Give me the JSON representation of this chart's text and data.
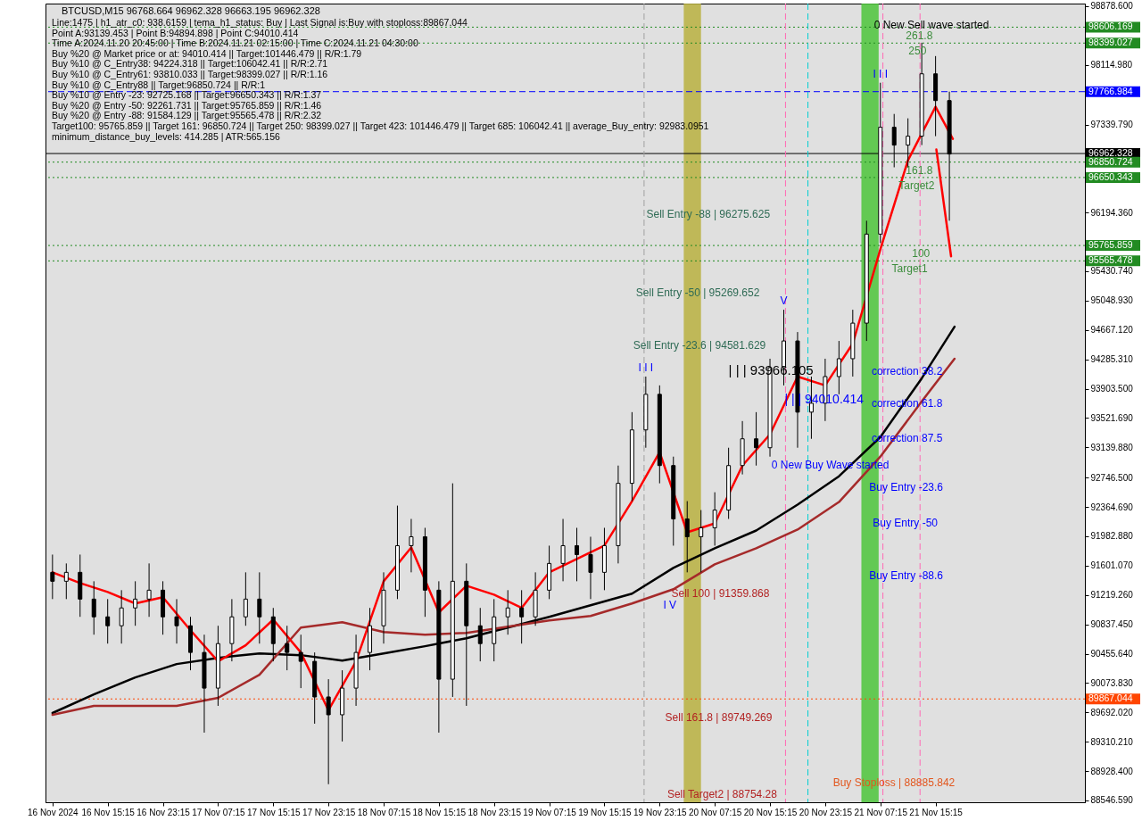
{
  "chart_data": {
    "type": "candlestick",
    "title": "BTCUSD,M15  96768.664 96962.328 96663.195 96962.328",
    "x": [
      "2024-11-16T07:15",
      "2024-11-16T09:15",
      "2024-11-16T11:15",
      "2024-11-16T13:15",
      "2024-11-16T15:15",
      "2024-11-16T17:15",
      "2024-11-16T19:15",
      "2024-11-16T21:15",
      "2024-11-16T23:15",
      "2024-11-17T01:15",
      "2024-11-17T03:15",
      "2024-11-17T05:15",
      "2024-11-17T07:15",
      "2024-11-17T09:15",
      "2024-11-17T11:15",
      "2024-11-17T13:15",
      "2024-11-17T15:15",
      "2024-11-17T17:15",
      "2024-11-17T19:15",
      "2024-11-17T21:15",
      "2024-11-17T23:15",
      "2024-11-18T01:15",
      "2024-11-18T03:15",
      "2024-11-18T05:15",
      "2024-11-18T07:15",
      "2024-11-18T09:15",
      "2024-11-18T11:15",
      "2024-11-18T13:15",
      "2024-11-18T15:15",
      "2024-11-18T17:15",
      "2024-11-18T19:15",
      "2024-11-18T21:15",
      "2024-11-18T23:15",
      "2024-11-19T01:15",
      "2024-11-19T03:15",
      "2024-11-19T05:15",
      "2024-11-19T07:15",
      "2024-11-19T09:15",
      "2024-11-19T11:15",
      "2024-11-19T13:15",
      "2024-11-19T15:15",
      "2024-11-19T17:15",
      "2024-11-19T19:15",
      "2024-11-19T21:15",
      "2024-11-19T23:15",
      "2024-11-20T01:15",
      "2024-11-20T03:15",
      "2024-11-20T05:15",
      "2024-11-20T07:15",
      "2024-11-20T09:15",
      "2024-11-20T11:15",
      "2024-11-20T13:15",
      "2024-11-20T15:15",
      "2024-11-20T17:15",
      "2024-11-20T19:15",
      "2024-11-20T21:15",
      "2024-11-20T23:15",
      "2024-11-21T01:15",
      "2024-11-21T03:15",
      "2024-11-21T05:15",
      "2024-11-21T07:15",
      "2024-11-21T09:15",
      "2024-11-21T11:15",
      "2024-11-21T13:15",
      "2024-11-21T15:15",
      "2024-11-21T17:15"
    ],
    "ohlc": [
      [
        91514,
        91745,
        91166,
        91398
      ],
      [
        91398,
        91630,
        91166,
        91514
      ],
      [
        91514,
        91745,
        90935,
        91166
      ],
      [
        91166,
        91398,
        90703,
        90935
      ],
      [
        90935,
        91166,
        90587,
        90819
      ],
      [
        90819,
        91282,
        90587,
        91051
      ],
      [
        91051,
        91398,
        90819,
        91166
      ],
      [
        91166,
        91630,
        90935,
        91282
      ],
      [
        91282,
        91398,
        90703,
        90935
      ],
      [
        90935,
        91166,
        90587,
        90819
      ],
      [
        90819,
        90935,
        90240,
        90472
      ],
      [
        90472,
        90703,
        89429,
        90008
      ],
      [
        90008,
        90819,
        89777,
        90587
      ],
      [
        90587,
        91166,
        90356,
        90935
      ],
      [
        90935,
        91514,
        90819,
        91166
      ],
      [
        91166,
        91514,
        90587,
        90935
      ],
      [
        90935,
        91051,
        90356,
        90587
      ],
      [
        90587,
        90819,
        90240,
        90472
      ],
      [
        90472,
        90703,
        90008,
        90356
      ],
      [
        90356,
        90472,
        89545,
        89893
      ],
      [
        89893,
        90124,
        88758,
        89661
      ],
      [
        89661,
        90240,
        89314,
        90008
      ],
      [
        90008,
        90703,
        89777,
        90472
      ],
      [
        90472,
        91051,
        90240,
        90819
      ],
      [
        90819,
        91514,
        90587,
        91282
      ],
      [
        91282,
        92382,
        91166,
        91861
      ],
      [
        91861,
        92209,
        91514,
        91977
      ],
      [
        91977,
        92093,
        90935,
        91282
      ],
      [
        91282,
        91398,
        89429,
        90124
      ],
      [
        90124,
        92672,
        89893,
        91398
      ],
      [
        91398,
        91630,
        89777,
        90819
      ],
      [
        90819,
        91051,
        90356,
        90587
      ],
      [
        90587,
        91166,
        90356,
        90935
      ],
      [
        90935,
        91282,
        90703,
        91051
      ],
      [
        91051,
        91282,
        90587,
        90935
      ],
      [
        90935,
        91514,
        90819,
        91282
      ],
      [
        91282,
        91861,
        91166,
        91630
      ],
      [
        91630,
        92209,
        91398,
        91861
      ],
      [
        91861,
        92093,
        91398,
        91745
      ],
      [
        91745,
        91977,
        91166,
        91514
      ],
      [
        91514,
        92093,
        91282,
        91861
      ],
      [
        91861,
        92903,
        91630,
        92672
      ],
      [
        92672,
        93598,
        92440,
        93367
      ],
      [
        93367,
        94061,
        93135,
        93830
      ],
      [
        93830,
        93946,
        92672,
        92903
      ],
      [
        92903,
        93019,
        91861,
        92209
      ],
      [
        92209,
        92440,
        91514,
        91977
      ],
      [
        91977,
        92324,
        91514,
        92093
      ],
      [
        92093,
        92556,
        91861,
        92324
      ],
      [
        92324,
        93135,
        92209,
        92903
      ],
      [
        92903,
        93482,
        92788,
        93251
      ],
      [
        93251,
        93598,
        92903,
        93135
      ],
      [
        93135,
        94293,
        93019,
        94177
      ],
      [
        94177,
        94930,
        93946,
        94524
      ],
      [
        94524,
        94640,
        93135,
        93598
      ],
      [
        93598,
        94061,
        93251,
        93714
      ],
      [
        93714,
        94293,
        93482,
        94061
      ],
      [
        94061,
        94524,
        93830,
        94293
      ],
      [
        94293,
        94930,
        94061,
        94756
      ],
      [
        94756,
        96088,
        94524,
        95914
      ],
      [
        95914,
        97883,
        95798,
        97304
      ],
      [
        97304,
        97477,
        96783,
        97072
      ],
      [
        97072,
        97420,
        96783,
        97188
      ],
      [
        97188,
        98404,
        97072,
        97999
      ],
      [
        97999,
        98230,
        97188,
        97651
      ],
      [
        97651,
        97767,
        96088,
        96956
      ]
    ],
    "series": [
      {
        "type": "line",
        "color": "#000000",
        "x": [
          "2024-11-16T07:15",
          "2024-11-16T13:15",
          "2024-11-16T19:15",
          "2024-11-17T01:15",
          "2024-11-17T07:15",
          "2024-11-17T13:15",
          "2024-11-17T19:15",
          "2024-11-18T01:15",
          "2024-11-18T07:15",
          "2024-11-18T13:15",
          "2024-11-18T19:15",
          "2024-11-19T01:15",
          "2024-11-19T07:15",
          "2024-11-19T13:15",
          "2024-11-19T19:15",
          "2024-11-20T01:15",
          "2024-11-20T07:15",
          "2024-11-20T13:15",
          "2024-11-20T19:15",
          "2024-11-21T01:15",
          "2024-11-21T07:15",
          "2024-11-21T13:15",
          "2024-11-21T18:00"
        ],
        "values": [
          89684,
          89927,
          90147,
          90321,
          90402,
          90460,
          90437,
          90367,
          90460,
          90553,
          90657,
          90796,
          90935,
          91085,
          91236,
          91572,
          91827,
          92058,
          92394,
          92764,
          93274,
          94038,
          94710
        ]
      },
      {
        "type": "line",
        "color": "#a52a2a",
        "x": [
          "2024-11-16T07:15",
          "2024-11-16T13:15",
          "2024-11-16T19:15",
          "2024-11-17T01:15",
          "2024-11-17T07:15",
          "2024-11-17T13:15",
          "2024-11-17T19:15",
          "2024-11-18T01:15",
          "2024-11-18T07:15",
          "2024-11-18T13:15",
          "2024-11-18T19:15",
          "2024-11-19T01:15",
          "2024-11-19T07:15",
          "2024-11-19T13:15",
          "2024-11-19T19:15",
          "2024-11-20T01:15",
          "2024-11-20T07:15",
          "2024-11-20T13:15",
          "2024-11-20T19:15",
          "2024-11-21T01:15",
          "2024-11-21T07:15",
          "2024-11-21T13:15",
          "2024-11-21T18:00"
        ],
        "values": [
          89661,
          89777,
          89777,
          89777,
          89881,
          90182,
          90796,
          90865,
          90738,
          90703,
          90726,
          90807,
          90889,
          90946,
          91109,
          91294,
          91618,
          91827,
          92070,
          92429,
          93019,
          93737,
          94293
        ]
      },
      {
        "type": "line",
        "color": "#ff0000",
        "x": [
          "2024-11-16T07:15",
          "2024-11-16T11:15",
          "2024-11-16T15:15",
          "2024-11-16T19:15",
          "2024-11-16T23:15",
          "2024-11-17T03:15",
          "2024-11-17T07:15",
          "2024-11-17T11:15",
          "2024-11-17T15:15",
          "2024-11-17T19:15",
          "2024-11-17T23:15",
          "2024-11-18T03:15",
          "2024-11-18T07:15",
          "2024-11-18T11:15",
          "2024-11-18T15:15",
          "2024-11-18T19:15",
          "2024-11-18T23:15",
          "2024-11-19T03:15",
          "2024-11-19T07:15",
          "2024-11-19T11:15",
          "2024-11-19T15:15",
          "2024-11-19T19:15",
          "2024-11-19T23:15",
          "2024-11-20T03:15",
          "2024-11-20T07:15",
          "2024-11-20T11:15",
          "2024-11-20T15:15",
          "2024-11-20T19:15",
          "2024-11-20T23:15",
          "2024-11-21T03:15",
          "2024-11-21T07:15",
          "2024-11-21T11:15",
          "2024-11-21T15:15",
          "2024-11-21T17:45"
        ],
        "values": [
          91514,
          91375,
          91259,
          91109,
          91190,
          90761,
          90356,
          90564,
          90900,
          90472,
          89719,
          90356,
          91398,
          91838,
          90993,
          91340,
          91224,
          91051,
          91514,
          91688,
          91861,
          92440,
          93077,
          92035,
          92151,
          92903,
          93309,
          94061,
          93946,
          94490,
          95717,
          96875,
          97570,
          97153
        ]
      },
      {
        "type": "line",
        "color": "#ff0000",
        "x": [
          "2024-11-21T15:22",
          "2024-11-21T17:30"
        ],
        "values": [
          97014,
          95625
        ]
      }
    ],
    "xlim": [
      "2024-11-16T06:53",
      "2024-11-22T12:15"
    ],
    "xticks": [
      {
        "value": "2024-11-16T07:15",
        "label": "16 Nov 2024"
      },
      {
        "value": "2024-11-16T15:15",
        "label": "16 Nov 15:15"
      },
      {
        "value": "2024-11-16T23:15",
        "label": "16 Nov 23:15"
      },
      {
        "value": "2024-11-17T07:15",
        "label": "17 Nov 07:15"
      },
      {
        "value": "2024-11-17T15:15",
        "label": "17 Nov 15:15"
      },
      {
        "value": "2024-11-17T23:15",
        "label": "17 Nov 23:15"
      },
      {
        "value": "2024-11-18T07:15",
        "label": "18 Nov 07:15"
      },
      {
        "value": "2024-11-18T15:15",
        "label": "18 Nov 15:15"
      },
      {
        "value": "2024-11-18T23:15",
        "label": "18 Nov 23:15"
      },
      {
        "value": "2024-11-19T07:15",
        "label": "19 Nov 07:15"
      },
      {
        "value": "2024-11-19T15:15",
        "label": "19 Nov 15:15"
      },
      {
        "value": "2024-11-19T23:15",
        "label": "19 Nov 23:15"
      },
      {
        "value": "2024-11-20T07:15",
        "label": "20 Nov 07:15"
      },
      {
        "value": "2024-11-20T15:15",
        "label": "20 Nov 15:15"
      },
      {
        "value": "2024-11-20T23:15",
        "label": "20 Nov 23:15"
      },
      {
        "value": "2024-11-21T07:15",
        "label": "21 Nov 07:15"
      },
      {
        "value": "2024-11-21T15:15",
        "label": "21 Nov 15:15"
      }
    ],
    "ylim": [
      88523,
      98913
    ],
    "yticks": [
      {
        "value": 98878.6,
        "label": "98878.600"
      },
      {
        "value": 98114.98,
        "label": "98114.980"
      },
      {
        "value": 97339.79,
        "label": "97339.790"
      },
      {
        "value": 96194.36,
        "label": "96194.360"
      },
      {
        "value": 95430.74,
        "label": "95430.740"
      },
      {
        "value": 95048.93,
        "label": "95048.930"
      },
      {
        "value": 94667.12,
        "label": "94667.120"
      },
      {
        "value": 94285.31,
        "label": "94285.310"
      },
      {
        "value": 93903.5,
        "label": "93903.500"
      },
      {
        "value": 93521.69,
        "label": "93521.690"
      },
      {
        "value": 93139.88,
        "label": "93139.880"
      },
      {
        "value": 92746.5,
        "label": "92746.500"
      },
      {
        "value": 92364.69,
        "label": "92364.690"
      },
      {
        "value": 91982.88,
        "label": "91982.880"
      },
      {
        "value": 91601.07,
        "label": "91601.070"
      },
      {
        "value": 91219.26,
        "label": "91219.260"
      },
      {
        "value": 90837.45,
        "label": "90837.450"
      },
      {
        "value": 90455.64,
        "label": "90455.640"
      },
      {
        "value": 90073.83,
        "label": "90073.830"
      },
      {
        "value": 89692.02,
        "label": "89692.020"
      },
      {
        "value": 89310.21,
        "label": "89310.210"
      },
      {
        "value": 88928.4,
        "label": "88928.400"
      },
      {
        "value": 88546.59,
        "label": "88546.590"
      }
    ],
    "bands": [
      {
        "axis": "x",
        "from": "2024-11-20T02:45",
        "to": "2024-11-20T05:15",
        "color": "#b8b040"
      },
      {
        "axis": "x",
        "from": "2024-11-21T04:30",
        "to": "2024-11-21T07:00",
        "color": "#4cc43a"
      }
    ],
    "ref_lines": [
      {
        "axis": "y",
        "value": 98606.169,
        "label": "98606.169",
        "color": "#228b22",
        "line_style": "dotted"
      },
      {
        "axis": "y",
        "value": 98399.027,
        "label": "98399.027",
        "color": "#228b22",
        "line_style": "dotted"
      },
      {
        "axis": "y",
        "value": 97766.984,
        "label": "97766.984",
        "color": "#0000ff",
        "line_style": "dashed"
      },
      {
        "axis": "y",
        "value": 96962.328,
        "label": "96962.328",
        "color": "#000000",
        "line_style": "solid"
      },
      {
        "axis": "y",
        "value": 96850.724,
        "label": "96850.724",
        "color": "#228b22",
        "line_style": "dotted"
      },
      {
        "axis": "y",
        "value": 96650.343,
        "label": "96650.343",
        "color": "#228b22",
        "line_style": "dotted"
      },
      {
        "axis": "y",
        "value": 95765.859,
        "label": "95765.859",
        "color": "#228b22",
        "line_style": "dotted"
      },
      {
        "axis": "y",
        "value": 95565.478,
        "label": "95565.478",
        "color": "#228b22",
        "line_style": "dotted"
      },
      {
        "axis": "y",
        "value": 89867.044,
        "label": "89867.044",
        "color": "#ff4500",
        "line_style": "dotted"
      },
      {
        "axis": "x",
        "value": "2024-11-19T21:00",
        "color": "#a0a0a0",
        "line_style": "dashed"
      },
      {
        "axis": "x",
        "value": "2024-11-20T17:30",
        "color": "#ff69b4",
        "line_style": "dashed"
      },
      {
        "axis": "x",
        "value": "2024-11-20T20:45",
        "color": "#00ced1",
        "line_style": "dashed"
      },
      {
        "axis": "x",
        "value": "2024-11-21T07:37",
        "color": "#ff69b4",
        "line_style": "dashed"
      },
      {
        "axis": "x",
        "value": "2024-11-21T13:00",
        "color": "#ff69b4",
        "line_style": "dashed"
      }
    ],
    "annotations": [
      "Line:1475 | h1_atr_c0: 938.6159 | tema_h1_status: Buy | Last Signal is:Buy with stoploss:89867.044",
      "Point A:93139.453 | Point B:94894.898 | Point C:94010.414",
      "Time A:2024.11.20 20:45:00 | Time B:2024.11.21 02:15:00 | Time C:2024.11.21 04:30:00",
      "Buy %20 @ Market price or at: 94010.414 || Target:101446.479 || R/R:1.79",
      "Buy %10 @ C_Entry38: 94224.318 || Target:106042.41 || R/R:2.71",
      "Buy %10 @ C_Entry61: 93810.033 || Target:98399.027 || R/R:1.16",
      "Buy %10 @ C_Entry88 || Target:96850.724 || R/R:1",
      "Buy %10 @ Entry -23: 92725.168 || Target:96650.343 || R/R:1.37",
      "Buy %20 @ Entry -50: 92261.731 || Target:95765.859 || R/R:1.46",
      "Buy %20 @ Entry -88: 91584.129 || Target:95565.478 || R/R:2.32",
      "Target100: 95765.859 || Target 161: 96850.724 || Target 250: 98399.027 || Target 423: 101446.479 || Target 685: 106042.41 || average_Buy_entry: 92983.0951",
      "minimum_distance_buy_levels: 414.285 | ATR:565.156",
      "Sell Entry -88 | 96275.625",
      "Sell Entry -50 | 95269.652",
      "Sell Entry -23.6 | 94581.629",
      "Sell 100 | 91359.868",
      "Sell 161.8 | 89749.269",
      "Sell Target2 | 88754.28",
      "Buy Stoploss | 88885.842",
      "Buy Entry -23.6",
      "Buy Entry -50",
      "Buy Entry -88.6",
      "correction 38.2",
      "correction 61.8",
      "correction 87.5",
      "0 New Buy Wave started",
      "0 New Sell wave started",
      "261.8",
      "250",
      "161.8",
      "Target2",
      "100",
      "Target1",
      "| | | 93966.105",
      "| | | 94010.414",
      {
        "text": "I I I",
        "x": "2024-11-19T21:15",
        "y": 94061
      },
      "I V",
      {
        "text": "V",
        "x": "2024-11-20T17:15",
        "y": 94930
      },
      {
        "text": "I I I",
        "x": "2024-11-21T07:15",
        "y": 97883
      }
    ]
  }
}
